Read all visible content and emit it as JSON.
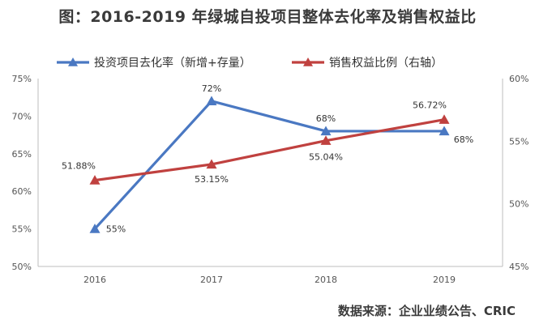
{
  "title": "图：2016-2019 年绿城自投项目整体去化率及销售权益比",
  "source": "数据来源：企业业绩公告、CRIC",
  "chart_data": {
    "type": "line",
    "title": "图：2016-2019 年绿城自投项目整体去化率及销售权益比",
    "categories": [
      "2016",
      "2017",
      "2018",
      "2019"
    ],
    "y_left": {
      "range": [
        50,
        75
      ],
      "ticks": [
        "50%",
        "55%",
        "60%",
        "65%",
        "70%",
        "75%"
      ],
      "tick_values": [
        50,
        55,
        60,
        65,
        70,
        75
      ]
    },
    "y_right": {
      "range": [
        45,
        60
      ],
      "ticks": [
        "45%",
        "50%",
        "55%",
        "60%"
      ],
      "tick_values": [
        45,
        50,
        55,
        60
      ]
    },
    "grid": false,
    "legend_position": "top",
    "series": [
      {
        "name": "投资项目去化率（新增+存量）",
        "axis": "left",
        "color": "#4a78c2",
        "marker": "triangle",
        "values": [
          55,
          72,
          68,
          68
        ],
        "labels": [
          "55%",
          "72%",
          "68%",
          "68%"
        ]
      },
      {
        "name": "销售权益比例（右轴）",
        "axis": "right",
        "color": "#c0413f",
        "marker": "triangle",
        "values": [
          51.88,
          53.15,
          55.04,
          56.72
        ],
        "labels": [
          "51.88%",
          "53.15%",
          "55.04%",
          "56.72%"
        ]
      }
    ]
  }
}
